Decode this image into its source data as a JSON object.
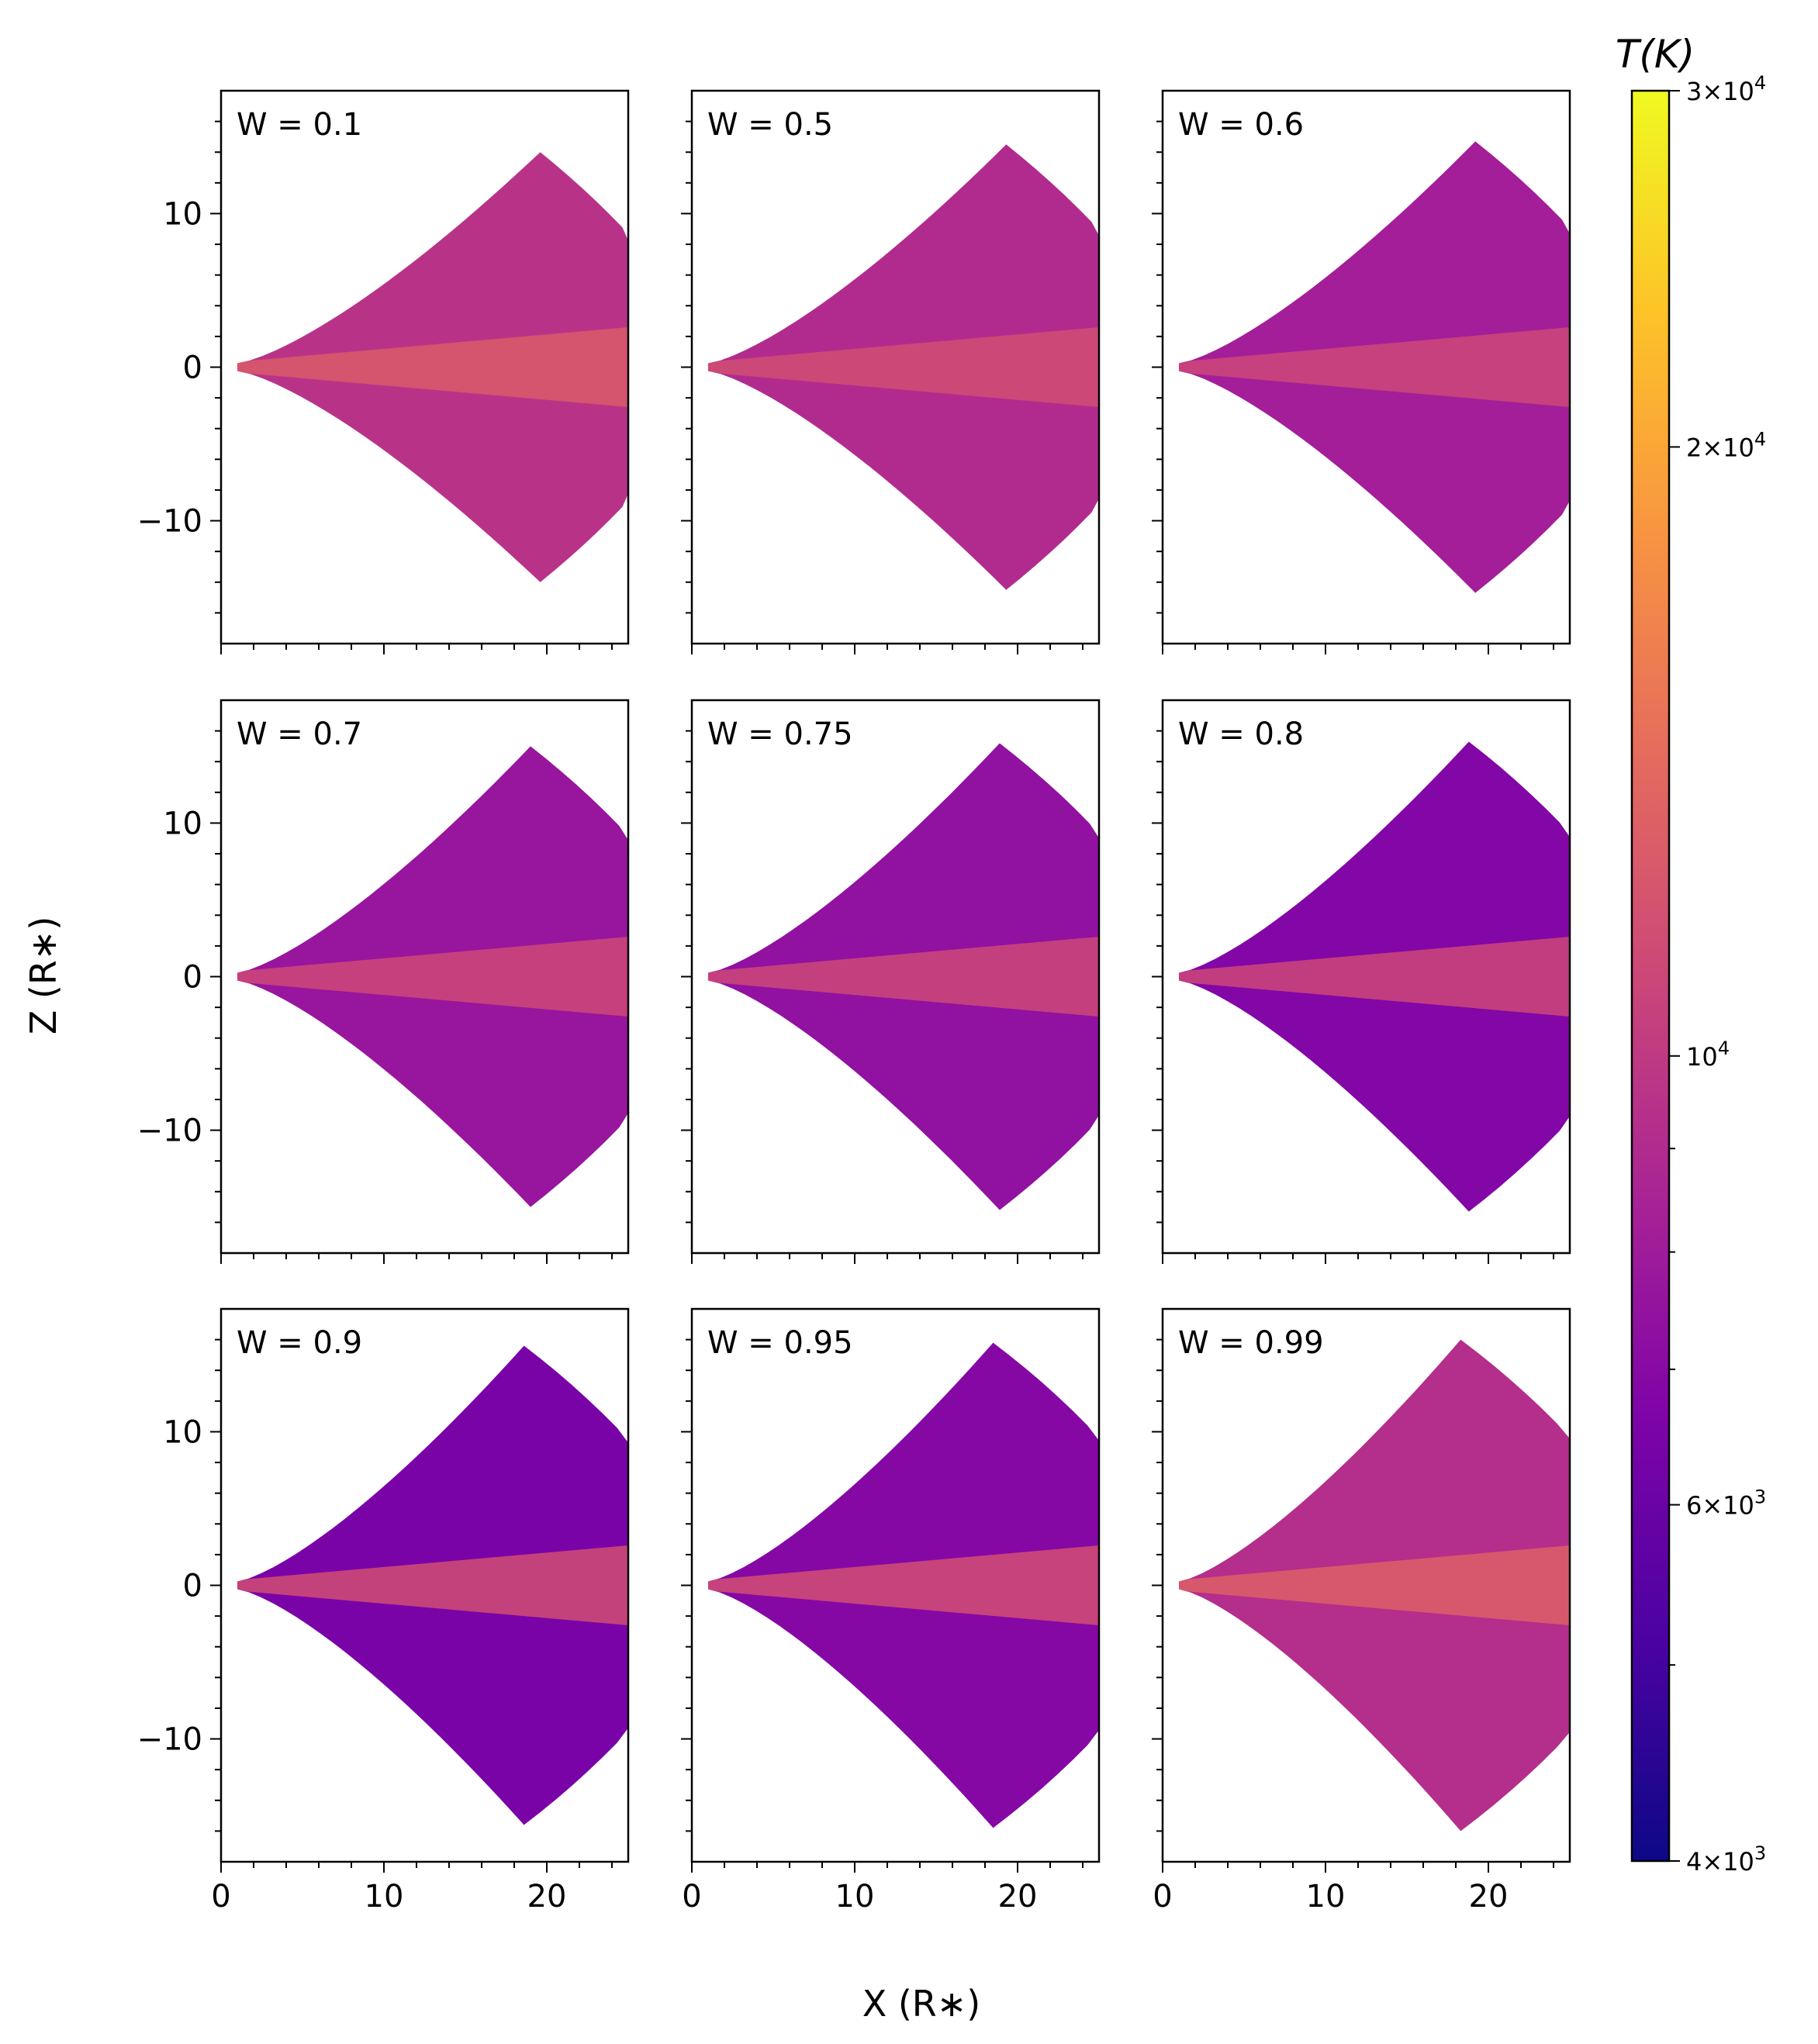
{
  "chart_data": {
    "type": "heatmap",
    "layout": "3x3 grid of panels",
    "xlabel": "X (R∗)",
    "ylabel": "Z (R∗)",
    "xlim": [
      0,
      25
    ],
    "ylim": [
      -18,
      18
    ],
    "x_ticks": [
      0,
      10,
      20
    ],
    "y_ticks": [
      10,
      0,
      -10
    ],
    "x_tick_labels": [
      "0",
      "10",
      "20"
    ],
    "y_tick_labels": [
      "10",
      "0",
      "−10"
    ],
    "grid": false,
    "disk_radial_extent": [
      1,
      25
    ],
    "panels": [
      {
        "label": "W = 0.1",
        "opening_z_at_apex": 14.0,
        "apex_x": 19.6,
        "wind_T_K": 9500,
        "midplane_T_K": 12500
      },
      {
        "label": "W = 0.5",
        "opening_z_at_apex": 14.5,
        "apex_x": 19.3,
        "wind_T_K": 9000,
        "midplane_T_K": 11500
      },
      {
        "label": "W = 0.6",
        "opening_z_at_apex": 14.7,
        "apex_x": 19.2,
        "wind_T_K": 8200,
        "midplane_T_K": 11000
      },
      {
        "label": "W = 0.7",
        "opening_z_at_apex": 15.0,
        "apex_x": 19.0,
        "wind_T_K": 7700,
        "midplane_T_K": 11000
      },
      {
        "label": "W = 0.75",
        "opening_z_at_apex": 15.2,
        "apex_x": 18.9,
        "wind_T_K": 7400,
        "midplane_T_K": 11000
      },
      {
        "label": "W = 0.8",
        "opening_z_at_apex": 15.3,
        "apex_x": 18.8,
        "wind_T_K": 6800,
        "midplane_T_K": 11000
      },
      {
        "label": "W = 0.9",
        "opening_z_at_apex": 15.6,
        "apex_x": 18.6,
        "wind_T_K": 6500,
        "midplane_T_K": 11500
      },
      {
        "label": "W = 0.95",
        "opening_z_at_apex": 15.8,
        "apex_x": 18.5,
        "wind_T_K": 6900,
        "midplane_T_K": 11500
      },
      {
        "label": "W = 0.99",
        "opening_z_at_apex": 16.0,
        "apex_x": 18.3,
        "wind_T_K": 9200,
        "midplane_T_K": 13000
      }
    ],
    "colorbar": {
      "title": "T(K)",
      "colormap": "plasma",
      "scale": "log",
      "range": [
        4000,
        30000
      ],
      "tick_labels": [
        {
          "value": 30000,
          "mantissa": "3",
          "exponent": "4"
        },
        {
          "value": 20000,
          "mantissa": "2",
          "exponent": "4"
        },
        {
          "value": 10000,
          "mantissa": "",
          "exponent": "4"
        },
        {
          "value": 6000,
          "mantissa": "6",
          "exponent": "3"
        },
        {
          "value": 4000,
          "mantissa": "4",
          "exponent": "3"
        }
      ],
      "minor_ticks": [
        5000,
        7000,
        8000,
        9000
      ]
    }
  }
}
